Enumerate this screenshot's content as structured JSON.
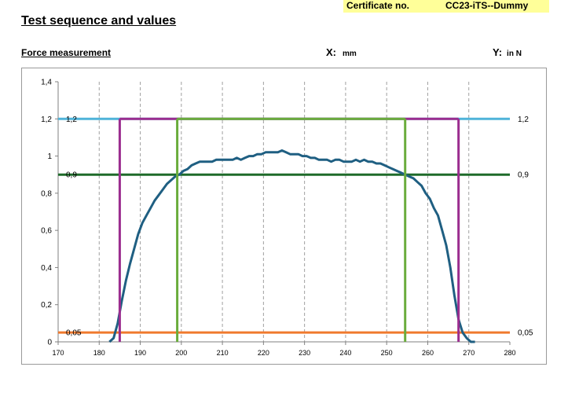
{
  "header": {
    "certificate_label": "Certificate no.",
    "certificate_value": "CC23-iTS--Dummy",
    "page_title": "Test sequence and values",
    "section_title": "Force measurement",
    "x_axis_name": "X:",
    "x_axis_unit": "mm",
    "y_axis_name": "Y:",
    "y_axis_unit": "in N"
  },
  "colors": {
    "curve": "#1f5f82",
    "upper_limit": "#4fb3d9",
    "mid_limit": "#1e6b2a",
    "lower_limit": "#f07a2e",
    "outer_window": "#9b2d8f",
    "inner_window": "#6aac3c",
    "grid": "#a0a0a0"
  },
  "chart_data": {
    "type": "line",
    "xlim": [
      170,
      280
    ],
    "ylim": [
      0,
      1.4
    ],
    "x_ticks": [
      "170",
      "180",
      "190",
      "200",
      "210",
      "220",
      "230",
      "240",
      "250",
      "260",
      "270",
      "280"
    ],
    "y_ticks": [
      "0",
      "0,2",
      "0,4",
      "0,6",
      "0,8",
      "1",
      "1,2",
      "1,4"
    ],
    "grid": "dashed vertical",
    "series": [
      {
        "values_x": [
          182.5,
          183.5,
          184.5,
          185.5,
          186.5,
          187.5,
          188.5,
          189.5,
          190.5,
          191.5,
          192.5,
          193.5,
          194.5,
          195.5,
          196.5,
          197.5,
          198.5,
          199.5,
          200.5,
          201.5,
          202.5,
          203.5,
          204.5,
          205.5,
          206.5,
          207.5,
          208.5,
          209.5,
          210.5,
          211.5,
          212.5,
          213.5,
          214.5,
          215.5,
          216.5,
          217.5,
          218.5,
          219.5,
          220.5,
          221.5,
          222.5,
          223.5,
          224.5,
          225.5,
          226.5,
          227.5,
          228.5,
          229.5,
          230.5,
          231.5,
          232.5,
          233.5,
          234.5,
          235.5,
          236.5,
          237.5,
          238.5,
          239.5,
          240.5,
          241.5,
          242.5,
          243.5,
          244.5,
          245.5,
          246.5,
          247.5,
          248.5,
          249.5,
          250.5,
          251.5,
          252.5,
          253.5,
          254.5,
          255.5,
          256.5,
          257.5,
          258.5,
          259.5,
          260.5,
          261.5,
          262.5,
          263.5,
          264.5,
          265.5,
          266.5,
          267.5,
          268.5,
          269.5,
          270.5,
          271.5
        ],
        "values_y": [
          0.0,
          0.02,
          0.1,
          0.22,
          0.33,
          0.42,
          0.5,
          0.58,
          0.64,
          0.68,
          0.72,
          0.76,
          0.79,
          0.82,
          0.85,
          0.87,
          0.89,
          0.9,
          0.92,
          0.93,
          0.95,
          0.96,
          0.97,
          0.97,
          0.97,
          0.97,
          0.98,
          0.98,
          0.98,
          0.98,
          0.98,
          0.99,
          0.98,
          0.99,
          1.0,
          1.0,
          1.01,
          1.01,
          1.02,
          1.02,
          1.02,
          1.02,
          1.03,
          1.02,
          1.01,
          1.01,
          1.01,
          1.0,
          1.0,
          0.99,
          0.99,
          0.98,
          0.98,
          0.98,
          0.97,
          0.98,
          0.98,
          0.97,
          0.97,
          0.97,
          0.98,
          0.97,
          0.98,
          0.97,
          0.97,
          0.96,
          0.96,
          0.95,
          0.94,
          0.93,
          0.92,
          0.91,
          0.9,
          0.89,
          0.88,
          0.86,
          0.84,
          0.8,
          0.77,
          0.72,
          0.68,
          0.6,
          0.52,
          0.4,
          0.25,
          0.12,
          0.05,
          0.02,
          0.0,
          0.0
        ]
      }
    ],
    "horizontal_limits": [
      {
        "y": 1.2,
        "label": "1,2",
        "color_key": "upper_limit"
      },
      {
        "y": 0.9,
        "label": "0,9",
        "color_key": "mid_limit"
      },
      {
        "y": 0.05,
        "label": "0,05",
        "color_key": "lower_limit"
      }
    ],
    "windows": [
      {
        "x_start": 185,
        "x_end": 267.5,
        "y_bottom": 0,
        "y_top": 1.2,
        "color_key": "outer_window"
      },
      {
        "x_start": 199,
        "x_end": 254.5,
        "y_bottom": 0,
        "y_top": 1.2,
        "color_key": "inner_window"
      }
    ]
  }
}
